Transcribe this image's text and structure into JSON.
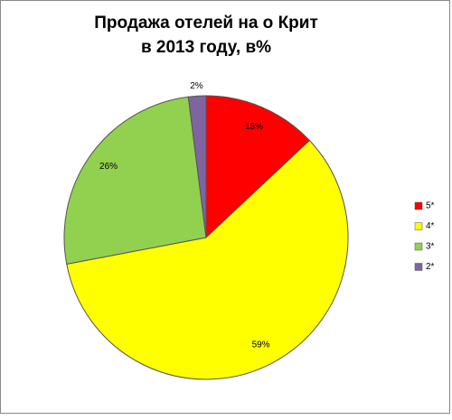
{
  "chart_data": {
    "type": "pie",
    "title": [
      "Продажа отелей на о Крит",
      "в 2013 году, в%"
    ],
    "categories": [
      "5*",
      "4*",
      "3*",
      "2*"
    ],
    "values": [
      13,
      59,
      26,
      2
    ],
    "value_labels": [
      "13%",
      "59%",
      "26%",
      "2%"
    ],
    "colors": [
      "#ff0000",
      "#ffff00",
      "#92d050",
      "#8064a2"
    ],
    "legend": "right"
  }
}
